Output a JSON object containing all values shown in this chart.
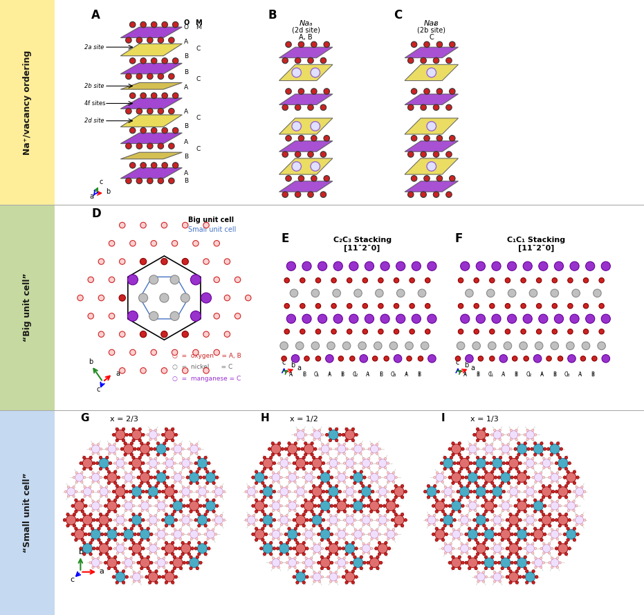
{
  "row_labels": [
    "“Small unit cell”",
    "“Big unit cell”",
    "Na⁺/vacancy ordering"
  ],
  "row_bg_colors": [
    "#c5d9f1",
    "#c6d9a0",
    "#ffee99"
  ],
  "panel_labels": [
    "A",
    "B",
    "C",
    "D",
    "E",
    "F",
    "G",
    "H",
    "I"
  ],
  "colors": {
    "purple": "#9932CC",
    "purple_layer": "#CC88DD",
    "yellow": "#E8D848",
    "red": "#CC2222",
    "gray": "#AAAAAA",
    "dark_gray": "#666666",
    "blue_line": "#4472C4",
    "white": "#ffffff",
    "teal": "#4BACC6",
    "salmon": "#E07070",
    "light_purple": "#E0B0F0"
  },
  "panel_B_title": [
    "Naₐ",
    "(2d site)",
    "A, B"
  ],
  "panel_C_title": [
    "Naᴃ",
    "(2b site)",
    "C"
  ],
  "panel_E_title": [
    "C₂C₃ Stacking",
    "[11¯2¯0]"
  ],
  "panel_F_title": [
    "C₁C₁ Stacking",
    "[11¯2¯0]"
  ],
  "panel_G_title": "x = 2/3",
  "panel_H_title": "x = 1/2",
  "panel_I_title": "x = 1/3"
}
